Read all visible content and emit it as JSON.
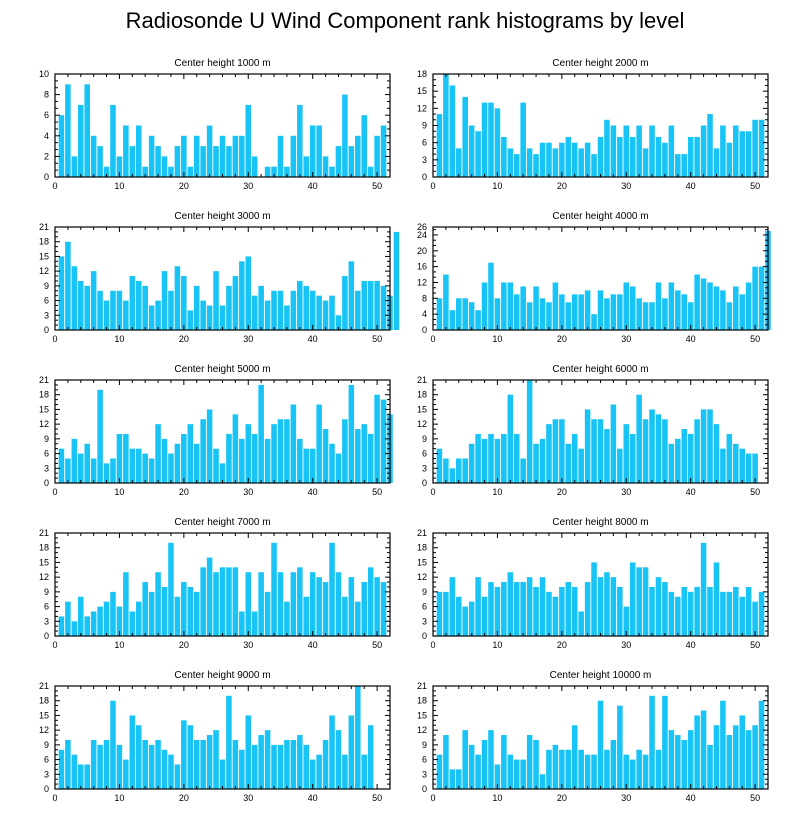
{
  "title": "Radiosonde U Wind Component rank histograms by level",
  "colors": {
    "bar": "#18C4F6",
    "axis": "#000000",
    "background": "#FFFFFF"
  },
  "chart_data": [
    {
      "type": "bar",
      "title": "Center height 1000 m",
      "xlabel": "",
      "ylabel": "",
      "xlim": [
        0,
        52
      ],
      "xticks": [
        0,
        10,
        20,
        30,
        40,
        50
      ],
      "ylim": [
        0,
        10
      ],
      "yticks": [
        0,
        2,
        4,
        6,
        8,
        10
      ],
      "values": [
        6,
        9,
        2,
        7,
        9,
        4,
        3,
        1,
        7,
        2,
        5,
        3,
        5,
        1,
        4,
        3,
        2,
        1,
        3,
        4,
        1,
        4,
        3,
        5,
        3,
        4,
        3,
        4,
        4,
        7,
        2,
        0,
        1,
        1,
        4,
        1,
        4,
        7,
        2,
        5,
        5,
        2,
        1,
        3,
        8,
        3,
        4,
        6,
        1,
        4,
        5
      ]
    },
    {
      "type": "bar",
      "title": "Center height 2000 m",
      "xlabel": "",
      "ylabel": "",
      "xlim": [
        0,
        52
      ],
      "xticks": [
        0,
        10,
        20,
        30,
        40,
        50
      ],
      "ylim": [
        0,
        18
      ],
      "yticks": [
        0,
        3,
        6,
        9,
        12,
        15,
        18
      ],
      "values": [
        11,
        18,
        16,
        5,
        14,
        9,
        8,
        13,
        13,
        12,
        7,
        5,
        4,
        13,
        5,
        4,
        6,
        6,
        5,
        6,
        7,
        6,
        5,
        6,
        4,
        7,
        10,
        9,
        7,
        9,
        7,
        9,
        5,
        9,
        7,
        6,
        9,
        4,
        4,
        7,
        7,
        9,
        11,
        5,
        9,
        6,
        9,
        8,
        8,
        10,
        10
      ]
    },
    {
      "type": "bar",
      "title": "Center height 3000 m",
      "xlabel": "",
      "ylabel": "",
      "xlim": [
        0,
        52
      ],
      "xticks": [
        0,
        10,
        20,
        30,
        40,
        50
      ],
      "ylim": [
        0,
        21
      ],
      "yticks": [
        0,
        3,
        6,
        9,
        12,
        15,
        18,
        21
      ],
      "values": [
        15,
        18,
        13,
        10,
        9,
        12,
        8,
        6,
        8,
        8,
        6,
        11,
        10,
        9,
        5,
        6,
        12,
        8,
        13,
        11,
        4,
        9,
        6,
        5,
        12,
        5,
        9,
        11,
        14,
        15,
        7,
        9,
        6,
        8,
        8,
        5,
        8,
        10,
        9,
        8,
        7,
        6,
        7,
        3,
        11,
        14,
        8,
        10,
        10,
        10,
        9,
        7,
        20
      ]
    },
    {
      "type": "bar",
      "title": "Center height 4000 m",
      "xlabel": "",
      "ylabel": "",
      "xlim": [
        0,
        52
      ],
      "xticks": [
        0,
        10,
        20,
        30,
        40,
        50
      ],
      "ylim": [
        0,
        26
      ],
      "yticks": [
        0,
        4,
        8,
        12,
        16,
        20,
        24,
        26
      ],
      "values": [
        8,
        14,
        5,
        8,
        8,
        7,
        5,
        12,
        17,
        8,
        12,
        12,
        9,
        11,
        7,
        11,
        8,
        7,
        12,
        9,
        7,
        9,
        9,
        10,
        4,
        10,
        8,
        9,
        9,
        12,
        11,
        8,
        7,
        7,
        12,
        8,
        12,
        10,
        9,
        7,
        14,
        13,
        12,
        11,
        10,
        7,
        11,
        9,
        12,
        16,
        16,
        25
      ]
    },
    {
      "type": "bar",
      "title": "Center height 5000 m",
      "xlabel": "",
      "ylabel": "",
      "xlim": [
        0,
        52
      ],
      "xticks": [
        0,
        10,
        20,
        30,
        40,
        50
      ],
      "ylim": [
        0,
        21
      ],
      "yticks": [
        0,
        3,
        6,
        9,
        12,
        15,
        18,
        21
      ],
      "values": [
        7,
        5,
        9,
        6,
        8,
        5,
        19,
        4,
        5,
        10,
        10,
        7,
        7,
        6,
        5,
        12,
        9,
        6,
        8,
        10,
        12,
        8,
        13,
        15,
        7,
        4,
        10,
        14,
        9,
        12,
        10,
        20,
        9,
        12,
        13,
        13,
        16,
        9,
        7,
        7,
        16,
        11,
        8,
        6,
        13,
        20,
        11,
        12,
        10,
        18,
        17,
        14
      ]
    },
    {
      "type": "bar",
      "title": "Center height 6000 m",
      "xlabel": "",
      "ylabel": "",
      "xlim": [
        0,
        52
      ],
      "xticks": [
        0,
        10,
        20,
        30,
        40,
        50
      ],
      "ylim": [
        0,
        21
      ],
      "yticks": [
        0,
        3,
        6,
        9,
        12,
        15,
        18,
        21
      ],
      "values": [
        7,
        5,
        3,
        5,
        5,
        8,
        10,
        9,
        10,
        9,
        10,
        18,
        10,
        5,
        21,
        8,
        9,
        12,
        13,
        13,
        8,
        10,
        7,
        15,
        13,
        13,
        11,
        16,
        7,
        12,
        10,
        18,
        13,
        15,
        14,
        13,
        8,
        9,
        11,
        10,
        13,
        15,
        15,
        12,
        7,
        10,
        8,
        7,
        6,
        6
      ]
    },
    {
      "type": "bar",
      "title": "Center height 7000 m",
      "xlabel": "",
      "ylabel": "",
      "xlim": [
        0,
        52
      ],
      "xticks": [
        0,
        10,
        20,
        30,
        40,
        50
      ],
      "ylim": [
        0,
        21
      ],
      "yticks": [
        0,
        3,
        6,
        9,
        12,
        15,
        18,
        21
      ],
      "values": [
        4,
        7,
        3,
        8,
        4,
        5,
        6,
        7,
        9,
        6,
        13,
        5,
        7,
        11,
        9,
        13,
        10,
        19,
        8,
        11,
        10,
        9,
        14,
        16,
        13,
        14,
        14,
        14,
        5,
        13,
        5,
        13,
        9,
        19,
        13,
        7,
        13,
        14,
        8,
        13,
        12,
        11,
        19,
        13,
        8,
        12,
        7,
        11,
        14,
        12,
        11
      ]
    },
    {
      "type": "bar",
      "title": "Center height 8000 m",
      "xlabel": "",
      "ylabel": "",
      "xlim": [
        0,
        52
      ],
      "xticks": [
        0,
        10,
        20,
        30,
        40,
        50
      ],
      "ylim": [
        0,
        21
      ],
      "yticks": [
        0,
        3,
        6,
        9,
        12,
        15,
        18,
        21
      ],
      "values": [
        9,
        9,
        12,
        8,
        6,
        7,
        12,
        8,
        11,
        10,
        11,
        13,
        11,
        11,
        12,
        10,
        12,
        9,
        8,
        10,
        11,
        10,
        5,
        11,
        15,
        12,
        13,
        12,
        10,
        6,
        15,
        14,
        14,
        10,
        12,
        11,
        9,
        8,
        10,
        9,
        10,
        19,
        10,
        15,
        9,
        9,
        10,
        8,
        10,
        7,
        9
      ]
    },
    {
      "type": "bar",
      "title": "Center height 9000 m",
      "xlabel": "",
      "ylabel": "",
      "xlim": [
        0,
        52
      ],
      "xticks": [
        0,
        10,
        20,
        30,
        40,
        50
      ],
      "ylim": [
        0,
        21
      ],
      "yticks": [
        0,
        3,
        6,
        9,
        12,
        15,
        18,
        21
      ],
      "values": [
        8,
        10,
        7,
        5,
        5,
        10,
        9,
        10,
        18,
        9,
        6,
        15,
        13,
        10,
        9,
        10,
        8,
        7,
        5,
        14,
        13,
        10,
        10,
        11,
        12,
        6,
        19,
        10,
        8,
        15,
        9,
        11,
        12,
        9,
        9,
        10,
        10,
        11,
        9,
        6,
        7,
        10,
        15,
        12,
        7,
        15,
        21,
        7,
        13
      ]
    },
    {
      "type": "bar",
      "title": "Center height 10000 m",
      "xlabel": "",
      "ylabel": "",
      "xlim": [
        0,
        52
      ],
      "xticks": [
        0,
        10,
        20,
        30,
        40,
        50
      ],
      "ylim": [
        0,
        21
      ],
      "yticks": [
        0,
        3,
        6,
        9,
        12,
        15,
        18,
        21
      ],
      "values": [
        7,
        11,
        4,
        4,
        12,
        9,
        7,
        10,
        12,
        5,
        11,
        7,
        6,
        6,
        11,
        10,
        3,
        8,
        9,
        8,
        8,
        13,
        8,
        7,
        7,
        18,
        8,
        10,
        17,
        7,
        6,
        8,
        7,
        19,
        8,
        19,
        12,
        11,
        10,
        12,
        15,
        16,
        9,
        13,
        18,
        11,
        13,
        15,
        12,
        13,
        18
      ]
    }
  ]
}
